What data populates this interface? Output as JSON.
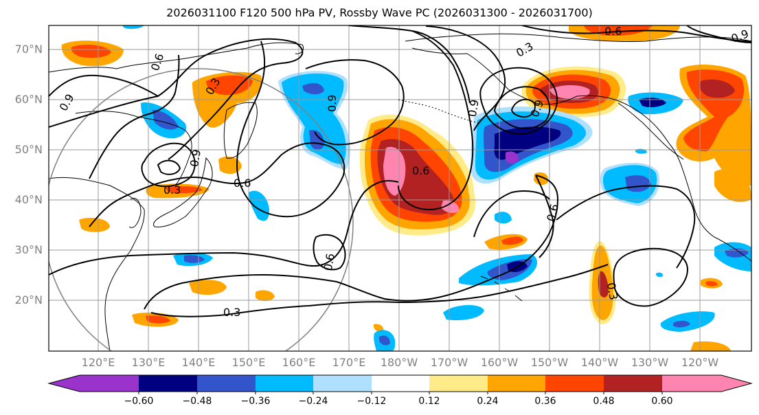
{
  "title": "2026031100 F120 500 hPa PV, Rossby Wave PC (2026031300 - 2026031700)",
  "lat_labels": [
    "70°N",
    "60°N",
    "50°N",
    "40°N",
    "30°N",
    "20°N"
  ],
  "lon_labels": [
    "120°E",
    "130°E",
    "140°E",
    "150°E",
    "160°E",
    "170°E",
    "180°W",
    "170°W",
    "160°W",
    "150°W",
    "140°W",
    "130°W",
    "120°W"
  ],
  "contour_labels": [
    "0.6",
    "0.3",
    "0.9",
    "0.9",
    "0.3",
    "0.6",
    "0.6",
    "0.9",
    "0.6",
    "0.6",
    "0.3",
    "0.6",
    "0.9",
    "0.3",
    "0.3",
    "0.9",
    "0.9"
  ],
  "colorbar": {
    "levels": [
      "−0.60",
      "−0.48",
      "−0.36",
      "−0.24",
      "−0.12",
      "0.12",
      "0.24",
      "0.36",
      "0.48",
      "0.60"
    ],
    "colors": [
      "#9933cc",
      "#000080",
      "#3355cc",
      "#00bbff",
      "#b0e0ff",
      "#ffffff",
      "#ffeb88",
      "#ffa500",
      "#ff4500",
      "#b22222",
      "#ff85b0"
    ]
  },
  "palette": {
    "purple": "#9933cc",
    "navy": "#000080",
    "blue": "#3355cc",
    "cyan": "#00bbff",
    "lightblue": "#b0e0ff",
    "yellow": "#ffeb88",
    "orange": "#ffa500",
    "redorange": "#ff4500",
    "darkred": "#b22222",
    "pink": "#ff85b0"
  }
}
